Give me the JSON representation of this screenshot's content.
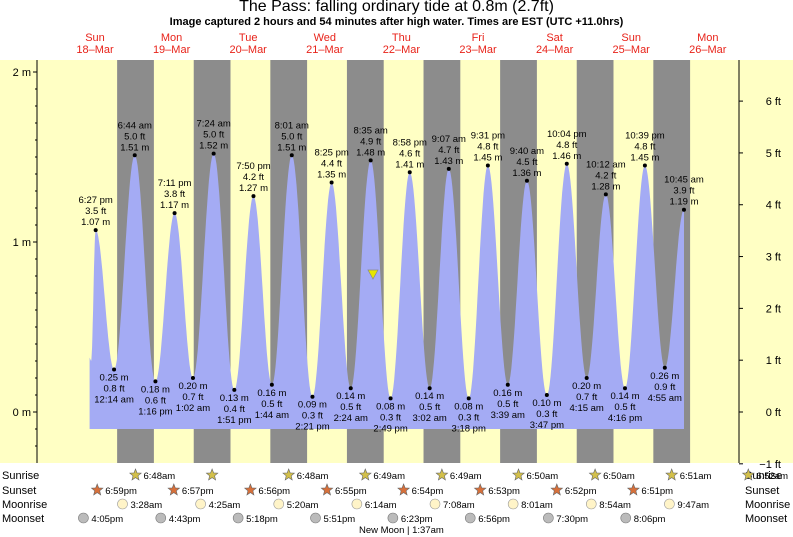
{
  "title": "The Pass: falling  ordinary tide at 0.8m (2.7ft)",
  "subtitle": "Image captured 2 hours and 54 minutes after high water. Times are EST (UTC +11.0hrs)",
  "colors": {
    "day": "#ffffc4",
    "night": "#8c8c8c",
    "tide": "#a4abf4",
    "label": "#e8231a",
    "sun": "#d3c04a",
    "sunset": "#d8703a",
    "moon": "#fff4c8",
    "moonset": "#bbbbbb",
    "marker": "#e6e600"
  },
  "chart_data": {
    "type": "area",
    "title": "The Pass: falling  ordinary tide at 0.8m (2.7ft)",
    "y_left_unit": "m",
    "y_right_unit": "ft",
    "ylim_m": [
      -0.3,
      2.1
    ],
    "left_ticks": [
      "2 m",
      "1 m",
      "0 m"
    ],
    "left_tick_values": [
      2,
      1,
      0
    ],
    "right_ticks": [
      "6 ft",
      "5 ft",
      "4 ft",
      "3 ft",
      "2 ft",
      "1 ft",
      "0 ft",
      "−1 ft"
    ],
    "right_tick_values_ft": [
      6,
      5,
      4,
      3,
      2,
      1,
      0,
      -1
    ],
    "days": [
      {
        "name": "Sun",
        "date": "18–Mar",
        "pos": 0.0,
        "tonight": 0.6
      },
      {
        "name": "Mon",
        "date": "19–Mar",
        "pos": 1.0,
        "tonight": 1.6
      },
      {
        "name": "Tue",
        "date": "20–Mar",
        "pos": 2.0,
        "tonight": 2.6
      },
      {
        "name": "Wed",
        "date": "21–Mar",
        "pos": 3.0,
        "tonight": 3.6
      },
      {
        "name": "Thu",
        "date": "22–Mar",
        "pos": 4.0,
        "tonight": 4.6
      },
      {
        "name": "Fri",
        "date": "23–Mar",
        "pos": 5.0,
        "tonight": 5.6
      },
      {
        "name": "Sat",
        "date": "24–Mar",
        "pos": 6.0,
        "tonight": 6.6
      },
      {
        "name": "Sun",
        "date": "25–Mar",
        "pos": 7.0,
        "tonight": 7.6
      },
      {
        "name": "Mon",
        "date": "26–Mar",
        "pos": 8.0,
        "tonight": 8.6
      }
    ],
    "nights": [
      {
        "start": 0.55,
        "end": 1.03
      },
      {
        "start": 1.55,
        "end": 2.03
      },
      {
        "start": 2.55,
        "end": 3.03
      },
      {
        "start": 3.55,
        "end": 4.03
      },
      {
        "start": 4.55,
        "end": 5.03
      },
      {
        "start": 5.55,
        "end": 6.03
      },
      {
        "start": 6.55,
        "end": 7.03
      },
      {
        "start": 7.55,
        "end": 8.03
      }
    ],
    "tides": [
      {
        "t": 0.27,
        "time": "6:27 pm",
        "ft": "3.5 ft",
        "m": "1.07 m",
        "v": 1.07,
        "type": "high"
      },
      {
        "t": 0.51,
        "time": "12:14 am",
        "ft": "0.8 ft",
        "m": "0.25 m",
        "v": 0.25,
        "type": "low"
      },
      {
        "t": 0.78,
        "time": "6:44 am",
        "ft": "5.0 ft",
        "m": "1.51 m",
        "v": 1.51,
        "type": "high"
      },
      {
        "t": 1.05,
        "time": "1:16 pm",
        "ft": "0.6 ft",
        "m": "0.18 m",
        "v": 0.18,
        "type": "low"
      },
      {
        "t": 1.3,
        "time": "7:11 pm",
        "ft": "3.8 ft",
        "m": "1.17 m",
        "v": 1.17,
        "type": "high"
      },
      {
        "t": 1.54,
        "time": "1:02 am",
        "ft": "0.7 ft",
        "m": "0.20 m",
        "v": 0.2,
        "type": "low"
      },
      {
        "t": 1.81,
        "time": "7:24 am",
        "ft": "5.0 ft",
        "m": "1.52 m",
        "v": 1.52,
        "type": "high"
      },
      {
        "t": 2.08,
        "time": "1:51 pm",
        "ft": "0.4 ft",
        "m": "0.13 m",
        "v": 0.13,
        "type": "low"
      },
      {
        "t": 2.33,
        "time": "7:50 pm",
        "ft": "4.2 ft",
        "m": "1.27 m",
        "v": 1.27,
        "type": "high"
      },
      {
        "t": 2.57,
        "time": "1:44 am",
        "ft": "0.5 ft",
        "m": "0.16 m",
        "v": 0.16,
        "type": "low"
      },
      {
        "t": 2.83,
        "time": "8:01 am",
        "ft": "5.0 ft",
        "m": "1.51 m",
        "v": 1.51,
        "type": "high"
      },
      {
        "t": 3.1,
        "time": "2:21 pm",
        "ft": "0.3 ft",
        "m": "0.09 m",
        "v": 0.09,
        "type": "low"
      },
      {
        "t": 3.35,
        "time": "8:25 pm",
        "ft": "4.4 ft",
        "m": "1.35 m",
        "v": 1.35,
        "type": "high"
      },
      {
        "t": 3.6,
        "time": "2:24 am",
        "ft": "0.5 ft",
        "m": "0.14 m",
        "v": 0.14,
        "type": "low"
      },
      {
        "t": 3.86,
        "time": "8:35 am",
        "ft": "4.9 ft",
        "m": "1.48 m",
        "v": 1.48,
        "type": "high"
      },
      {
        "t": 4.12,
        "time": "2:49 pm",
        "ft": "0.3 ft",
        "m": "0.08 m",
        "v": 0.08,
        "type": "low"
      },
      {
        "t": 4.37,
        "time": "8:58 pm",
        "ft": "4.6 ft",
        "m": "1.41 m",
        "v": 1.41,
        "type": "high"
      },
      {
        "t": 4.63,
        "time": "3:02 am",
        "ft": "0.5 ft",
        "m": "0.14 m",
        "v": 0.14,
        "type": "low"
      },
      {
        "t": 4.88,
        "time": "9:07 am",
        "ft": "4.7 ft",
        "m": "1.43 m",
        "v": 1.43,
        "type": "high"
      },
      {
        "t": 5.14,
        "time": "3:18 pm",
        "ft": "0.3 ft",
        "m": "0.08 m",
        "v": 0.08,
        "type": "low"
      },
      {
        "t": 5.39,
        "time": "9:31 pm",
        "ft": "4.8 ft",
        "m": "1.45 m",
        "v": 1.45,
        "type": "high"
      },
      {
        "t": 5.65,
        "time": "3:39 am",
        "ft": "0.5 ft",
        "m": "0.16 m",
        "v": 0.16,
        "type": "low"
      },
      {
        "t": 5.9,
        "time": "9:40 am",
        "ft": "4.5 ft",
        "m": "1.36 m",
        "v": 1.36,
        "type": "high"
      },
      {
        "t": 6.16,
        "time": "3:47 pm",
        "ft": "0.3 ft",
        "m": "0.10 m",
        "v": 0.1,
        "type": "low"
      },
      {
        "t": 6.42,
        "time": "10:04 pm",
        "ft": "4.8 ft",
        "m": "1.46 m",
        "v": 1.46,
        "type": "high"
      },
      {
        "t": 6.68,
        "time": "4:15 am",
        "ft": "0.7 ft",
        "m": "0.20 m",
        "v": 0.2,
        "type": "low"
      },
      {
        "t": 6.93,
        "time": "10:12 am",
        "ft": "4.2 ft",
        "m": "1.28 m",
        "v": 1.28,
        "type": "high"
      },
      {
        "t": 7.18,
        "time": "4:16 pm",
        "ft": "0.5 ft",
        "m": "0.14 m",
        "v": 0.14,
        "type": "low"
      },
      {
        "t": 7.44,
        "time": "10:39 pm",
        "ft": "4.8 ft",
        "m": "1.45 m",
        "v": 1.45,
        "type": "high"
      },
      {
        "t": 7.7,
        "time": "4:55 am",
        "ft": "0.9 ft",
        "m": "0.26 m",
        "v": 0.26,
        "type": "low"
      },
      {
        "t": 7.95,
        "time": "10:45 am",
        "ft": "3.9 ft",
        "m": "1.19 m",
        "v": 1.19,
        "type": "high"
      }
    ],
    "current": {
      "t": 3.89,
      "v": 0.8,
      "label": "falling  ordinary tide at 0.8m (2.7ft)"
    },
    "rows": [
      {
        "label": "Sunrise",
        "kind": "sunrise",
        "events": [
          {
            "t": 0.79,
            "time": "6:48am"
          },
          {
            "t": 1.79,
            "time": ""
          },
          {
            "t": 2.79,
            "time": "6:48am"
          },
          {
            "t": 3.79,
            "time": "6:49am"
          },
          {
            "t": 4.79,
            "time": "6:49am"
          },
          {
            "t": 5.79,
            "time": "6:50am"
          },
          {
            "t": 6.79,
            "time": "6:50am"
          },
          {
            "t": 7.79,
            "time": "6:51am"
          },
          {
            "t": 8.79,
            "time": "6:52am"
          }
        ]
      },
      {
        "label": "Sunset",
        "kind": "sunset",
        "events": [
          {
            "t": 0.29,
            "time": "6:59pm"
          },
          {
            "t": 1.29,
            "time": "6:57pm"
          },
          {
            "t": 2.29,
            "time": "6:56pm"
          },
          {
            "t": 3.29,
            "time": "6:55pm"
          },
          {
            "t": 4.29,
            "time": "6:54pm"
          },
          {
            "t": 5.29,
            "time": "6:53pm"
          },
          {
            "t": 6.29,
            "time": "6:52pm"
          },
          {
            "t": 7.29,
            "time": "6:51pm"
          }
        ]
      },
      {
        "label": "Moonrise",
        "kind": "moonrise",
        "events": [
          {
            "t": 0.62,
            "time": "3:28am"
          },
          {
            "t": 1.64,
            "time": "4:25am"
          },
          {
            "t": 2.66,
            "time": "5:20am"
          },
          {
            "t": 3.68,
            "time": "6:14am"
          },
          {
            "t": 4.7,
            "time": "7:08am"
          },
          {
            "t": 5.72,
            "time": "8:01am"
          },
          {
            "t": 6.74,
            "time": "8:54am"
          },
          {
            "t": 7.76,
            "time": "9:47am"
          }
        ]
      },
      {
        "label": "Moonset",
        "kind": "moonset",
        "events": [
          {
            "t": 0.11,
            "time": "4:05pm"
          },
          {
            "t": 1.12,
            "time": "4:43pm"
          },
          {
            "t": 2.13,
            "time": "5:18pm"
          },
          {
            "t": 3.14,
            "time": "5:51pm"
          },
          {
            "t": 4.15,
            "time": "6:23pm"
          },
          {
            "t": 5.16,
            "time": "6:56pm"
          },
          {
            "t": 6.18,
            "time": "7:30pm"
          },
          {
            "t": 7.19,
            "time": "8:06pm"
          }
        ]
      }
    ],
    "moon_phase": "New Moon | 1:37am"
  }
}
